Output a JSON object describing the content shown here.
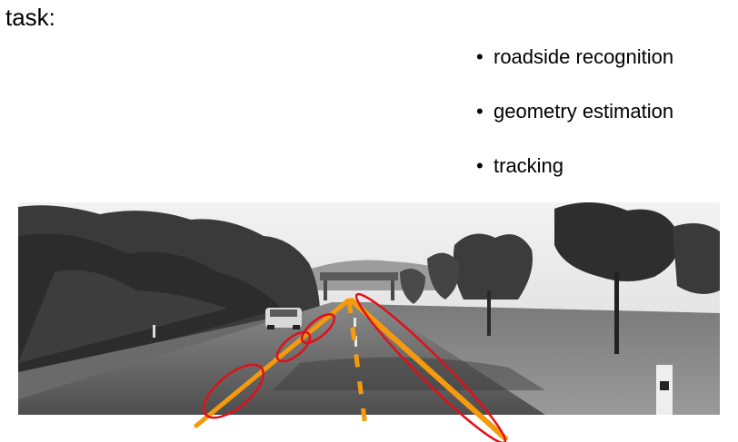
{
  "slide": {
    "title": "task:",
    "bullets": [
      {
        "bullet": "•",
        "label": "roadside recognition"
      },
      {
        "bullet": "•",
        "label": "geometry estimation"
      },
      {
        "bullet": "•",
        "label": "tracking"
      }
    ]
  },
  "colors": {
    "estimate_line": "#f59a0c",
    "detection_ellipse": "#e01018"
  },
  "photo": {
    "icon": "road-scene-photo"
  }
}
